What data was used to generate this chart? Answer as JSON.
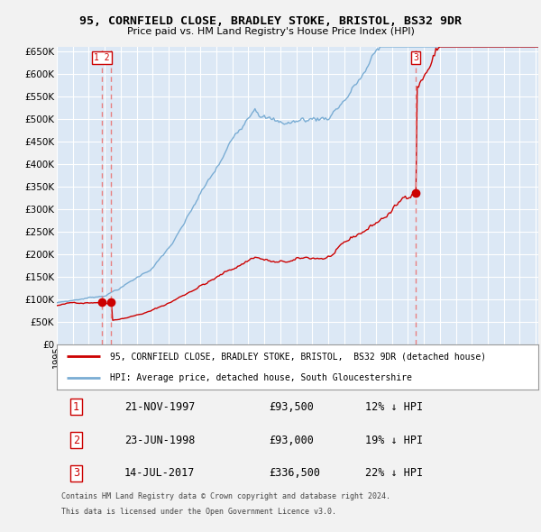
{
  "title": "95, CORNFIELD CLOSE, BRADLEY STOKE, BRISTOL, BS32 9DR",
  "subtitle": "Price paid vs. HM Land Registry's House Price Index (HPI)",
  "legend_label_red": "95, CORNFIELD CLOSE, BRADLEY STOKE, BRISTOL,  BS32 9DR (detached house)",
  "legend_label_blue": "HPI: Average price, detached house, South Gloucestershire",
  "footer_line1": "Contains HM Land Registry data © Crown copyright and database right 2024.",
  "footer_line2": "This data is licensed under the Open Government Licence v3.0.",
  "transactions": [
    {
      "num": "1",
      "date": "21-NOV-1997",
      "price": 93500,
      "pct": "12%",
      "dir": "↓"
    },
    {
      "num": "2",
      "date": "23-JUN-1998",
      "price": 93000,
      "pct": "19%",
      "dir": "↓"
    },
    {
      "num": "3",
      "date": "14-JUL-2017",
      "price": 336500,
      "pct": "22%",
      "dir": "↓"
    }
  ],
  "dot_values_red": [
    93500,
    93000,
    336500
  ],
  "ylim": [
    0,
    660000
  ],
  "yticks": [
    0,
    50000,
    100000,
    150000,
    200000,
    250000,
    300000,
    350000,
    400000,
    450000,
    500000,
    550000,
    600000,
    650000
  ],
  "plot_bg_color": "#dce8f5",
  "grid_color": "#ffffff",
  "red_line_color": "#cc0000",
  "blue_line_color": "#7aadd4",
  "vline_color": "#e88080",
  "dot_color": "#cc0000",
  "title_color": "#000000",
  "box_color": "#cc0000",
  "outer_bg": "#f2f2f2"
}
